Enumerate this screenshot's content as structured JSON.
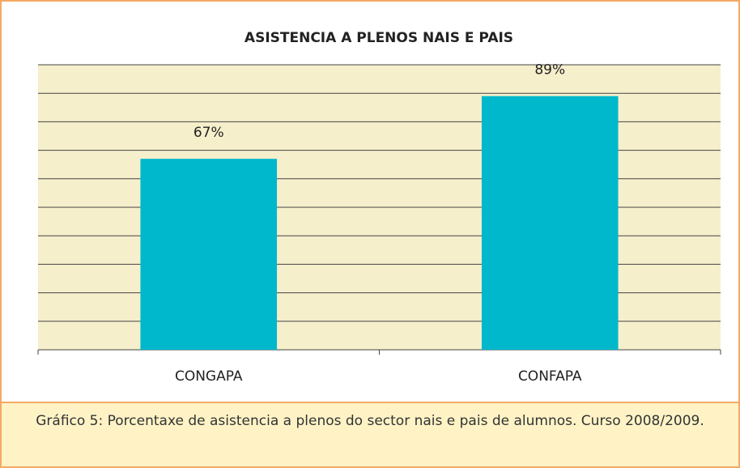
{
  "chart_data": {
    "type": "bar",
    "title": "ASISTENCIA A PLENOS NAIS E PAIS",
    "categories": [
      "CONGAPA",
      "CONFAPA"
    ],
    "values": [
      67,
      89
    ],
    "value_labels": [
      "67%",
      "89%"
    ],
    "color": "#00b8cc",
    "ylim": [
      0,
      100
    ],
    "yticks": [
      0,
      10,
      20,
      30,
      40,
      50,
      60,
      70,
      80,
      90,
      100
    ],
    "grid": true,
    "caption": "Gráfico 5: Porcentaxe de asistencia a plenos do sector nais e pais de alumnos. Curso 2008/2009."
  }
}
